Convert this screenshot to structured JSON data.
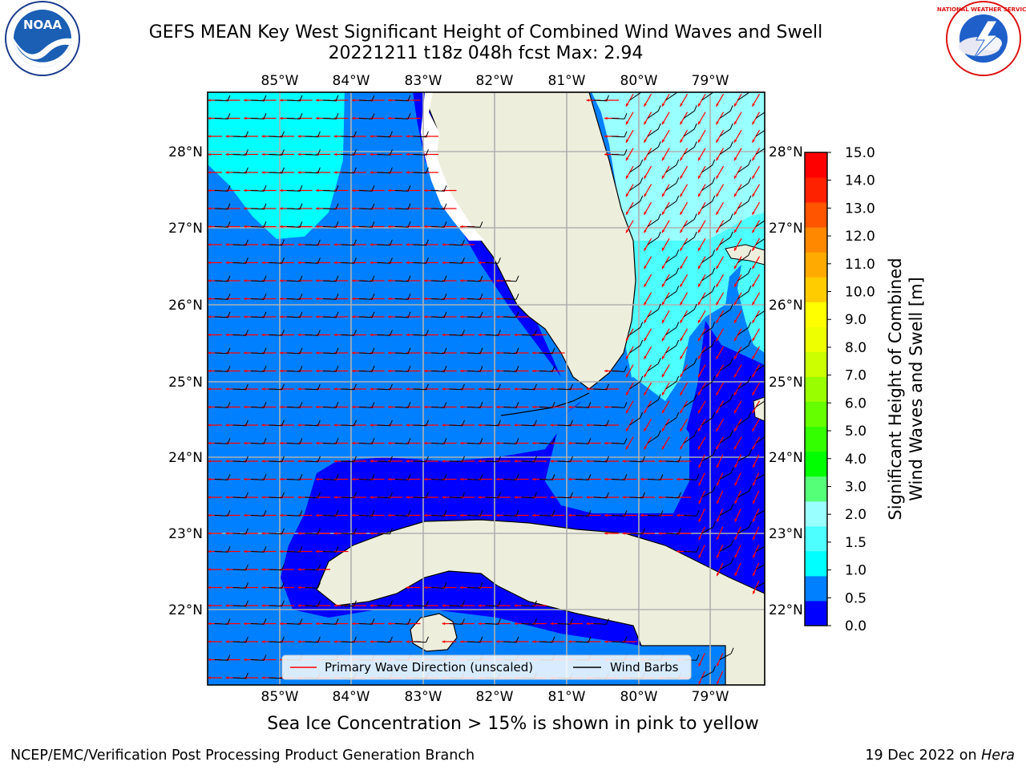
{
  "title_line1": "GEFS MEAN Key West Significant Height of Combined Wind Waves and Swell",
  "title_line2": "20221211 t18z 048h fcst   Max: 2.94",
  "lon_ticks": [
    "85°W",
    "84°W",
    "83°W",
    "82°W",
    "81°W",
    "80°W",
    "79°W"
  ],
  "lat_ticks": [
    "28°N",
    "27°N",
    "26°N",
    "25°N",
    "24°N",
    "23°N",
    "22°N"
  ],
  "colorbar": {
    "label_line1": "Significant Height of Combined",
    "label_line2": "Wind Waves and Swell [m]",
    "ticks": [
      "15.0",
      "14.0",
      "13.0",
      "12.0",
      "11.0",
      "10.0",
      "9.0",
      "8.0",
      "7.0",
      "6.0",
      "5.0",
      "4.0",
      "3.0",
      "2.0",
      "1.5",
      "1.0",
      "0.5",
      "0.0"
    ],
    "colors": [
      "#0000ff",
      "#0080ff",
      "#00ffff",
      "#4dffff",
      "#99ffff",
      "#55ff77",
      "#00ff00",
      "#33ff00",
      "#66ff00",
      "#99ff00",
      "#ccff00",
      "#eeff00",
      "#ffff00",
      "#ffcc00",
      "#ffaa00",
      "#ff8800",
      "#ff5500",
      "#ff2200",
      "#ff0000"
    ]
  },
  "legend": {
    "wave_dir": "Primary Wave Direction (unscaled)",
    "wind_barbs": "Wind Barbs"
  },
  "footer": {
    "sea_ice": "Sea Ice Concentration > 15% is shown in pink to yellow",
    "credit": "NCEP/EMC/Verification Post Processing Product Generation Branch",
    "date": "19 Dec 2022 on ",
    "machine": "Hera"
  },
  "logos": {
    "left": "NOAA",
    "right": "NATIONAL WEATHER SERVICE"
  },
  "map_colors": {
    "land": "#eeeedd",
    "h0": "#0000ff",
    "h05": "#0080ff",
    "h10": "#00ffff",
    "h15": "#4dffff",
    "h20": "#99ffff",
    "arrow": "#ff0000",
    "barb": "#000000",
    "grid": "#b0b0b0"
  }
}
